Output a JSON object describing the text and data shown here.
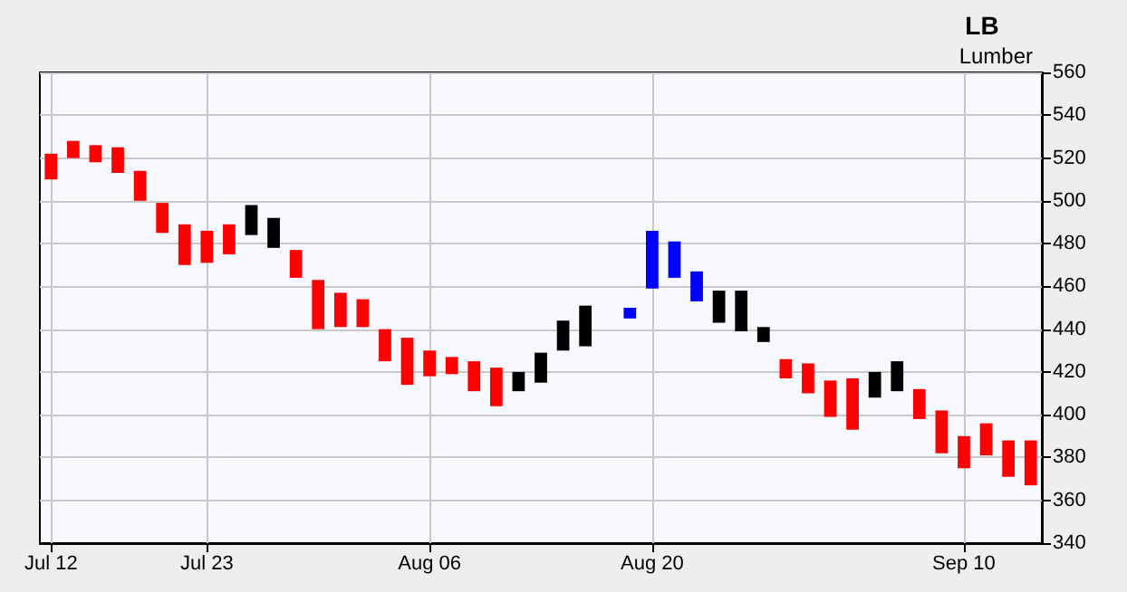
{
  "chart_data": {
    "type": "bar",
    "title": "LB",
    "subtitle": "Lumber",
    "categories": [
      "Jul 12",
      null,
      null,
      null,
      null,
      null,
      null,
      "Jul 23",
      null,
      null,
      null,
      null,
      null,
      null,
      null,
      null,
      null,
      "Aug 06",
      null,
      null,
      null,
      null,
      null,
      null,
      null,
      null,
      null,
      "Aug 20",
      null,
      null,
      null,
      null,
      null,
      null,
      null,
      null,
      null,
      null,
      null,
      null,
      null,
      "Sep 10",
      null,
      null,
      null
    ],
    "base": [
      510,
      520,
      518,
      513,
      500,
      485,
      470,
      471,
      475,
      484,
      478,
      464,
      440,
      441,
      441,
      425,
      414,
      418,
      419,
      411,
      404,
      411,
      415,
      430,
      432,
      null,
      445,
      459,
      464,
      453,
      443,
      439,
      434,
      417,
      410,
      399,
      393,
      408,
      411,
      398,
      382,
      375,
      381,
      371,
      367
    ],
    "values": [
      12,
      8,
      8,
      12,
      14,
      14,
      19,
      15,
      14,
      14,
      14,
      13,
      23,
      16,
      13,
      15,
      22,
      12,
      8,
      14,
      18,
      9,
      14,
      14,
      19,
      null,
      5,
      27,
      17,
      14,
      15,
      19,
      7,
      9,
      14,
      17,
      24,
      12,
      14,
      14,
      20,
      15,
      15,
      17,
      21
    ],
    "colors": [
      "#ff0000",
      "#ff0000",
      "#ff0000",
      "#ff0000",
      "#ff0000",
      "#ff0000",
      "#ff0000",
      "#ff0000",
      "#ff0000",
      "#000000",
      "#000000",
      "#ff0000",
      "#ff0000",
      "#ff0000",
      "#ff0000",
      "#ff0000",
      "#ff0000",
      "#ff0000",
      "#ff0000",
      "#ff0000",
      "#ff0000",
      "#000000",
      "#000000",
      "#000000",
      "#000000",
      null,
      "#0000ff",
      "#0000ff",
      "#0000ff",
      "#0000ff",
      "#000000",
      "#000000",
      "#000000",
      "#ff0000",
      "#ff0000",
      "#ff0000",
      "#ff0000",
      "#000000",
      "#000000",
      "#ff0000",
      "#ff0000",
      "#ff0000",
      "#ff0000",
      "#ff0000",
      "#ff0000"
    ],
    "ylim": [
      340,
      560
    ],
    "yticks": [
      340,
      360,
      380,
      400,
      420,
      440,
      460,
      480,
      500,
      520,
      540,
      560
    ],
    "grid": true
  }
}
